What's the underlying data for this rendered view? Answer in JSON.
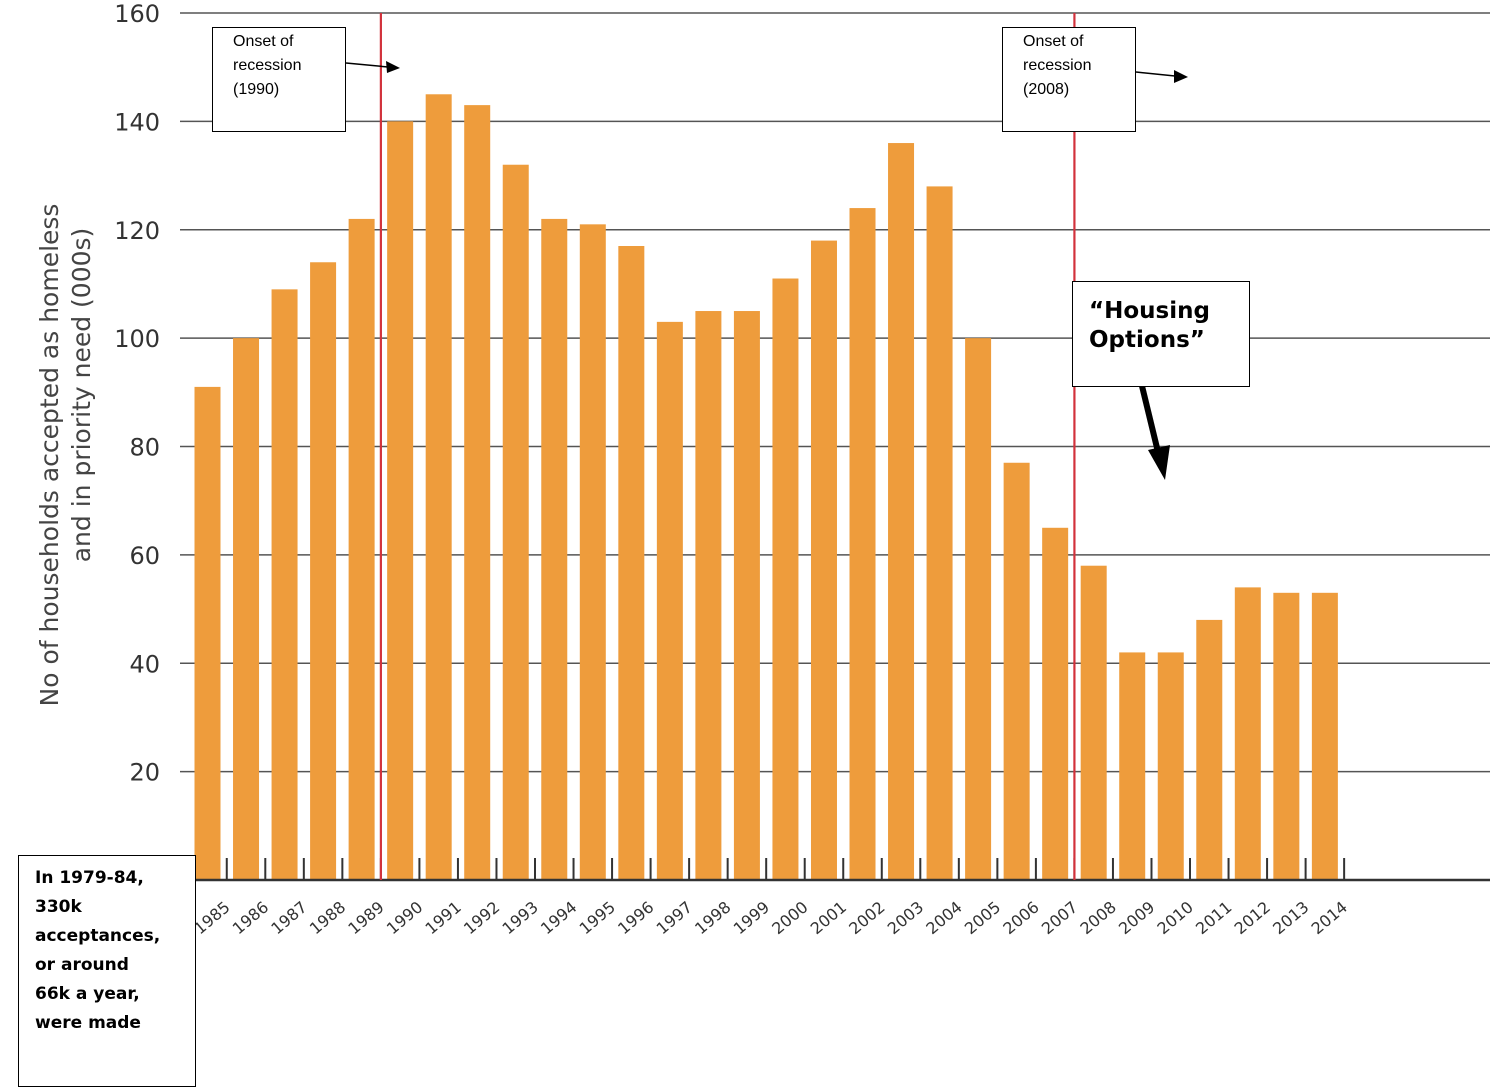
{
  "chart_data": {
    "type": "bar",
    "ylabel_lines": [
      "No of households accepted as homeless",
      "and in priority need (000s)"
    ],
    "ylim": [
      0,
      160
    ],
    "yticks": [
      0,
      20,
      40,
      60,
      80,
      100,
      120,
      140,
      160
    ],
    "grid": true,
    "categories": [
      "1985",
      "1986",
      "1987",
      "1988",
      "1989",
      "1990",
      "1991",
      "1992",
      "1993",
      "1994",
      "1995",
      "1996",
      "1997",
      "1998",
      "1999",
      "2000",
      "2001",
      "2002",
      "2003",
      "2004",
      "2005",
      "2006",
      "2007",
      "2008",
      "2009",
      "2010",
      "2011",
      "2012",
      "2013",
      "2014"
    ],
    "values": [
      91,
      100,
      109,
      114,
      122,
      140,
      145,
      143,
      132,
      122,
      121,
      117,
      103,
      105,
      105,
      111,
      118,
      124,
      136,
      128,
      100,
      77,
      65,
      58,
      42,
      42,
      48,
      54,
      53,
      53
    ],
    "bar_color": "#ee9c3c",
    "recession_lines": [
      "1990",
      "2008"
    ],
    "recession_line_color": "#d2323c",
    "annotations": {
      "recession_1990": [
        "Onset of",
        "recession",
        "(1990)"
      ],
      "recession_2008": [
        "Onset of",
        "recession",
        "(2008)"
      ],
      "housing_options": [
        "“Housing",
        "Options”"
      ],
      "note": [
        "In 1979-84,",
        "330k",
        "acceptances,",
        "or around",
        "66k a year,",
        "were made"
      ]
    }
  }
}
